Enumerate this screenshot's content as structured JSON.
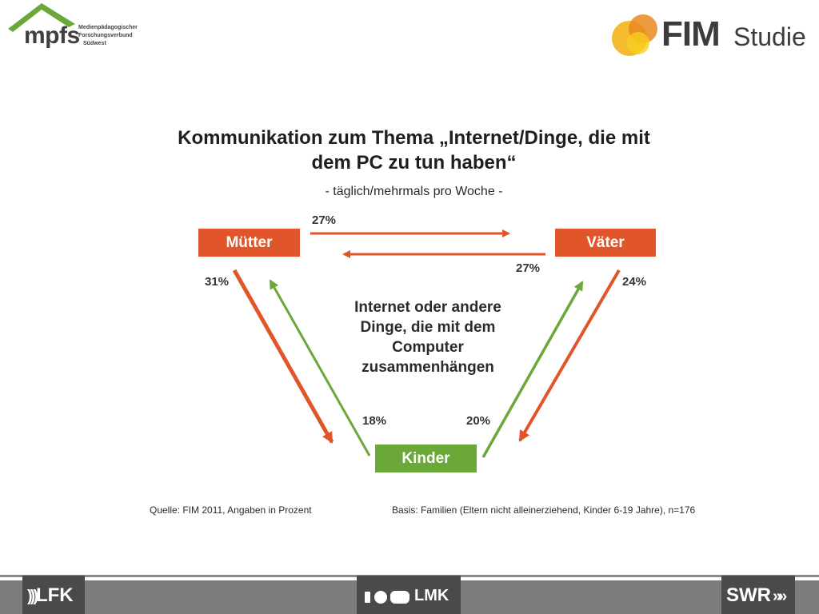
{
  "header": {
    "left_logo": {
      "word": "mpfs",
      "subtitle_lines": [
        "Medienpädagogischer",
        "Forschungsverbund",
        "Südwest"
      ]
    },
    "right_logo": {
      "word": "FIM",
      "suffix": "Studie"
    }
  },
  "title_lines": [
    "Kommunikation zum Thema „Internet/Dinge, die mit",
    "dem PC zu tun haben“"
  ],
  "subtitle": "- täglich/mehrmals pro Woche -",
  "nodes": {
    "mothers": "Mütter",
    "fathers": "Väter",
    "children": "Kinder"
  },
  "center_label_lines": [
    "Internet oder andere",
    "Dinge, die mit dem",
    "Computer",
    "zusammenhängen"
  ],
  "percentages": {
    "mothers_to_fathers": "27%",
    "fathers_to_mothers": "27%",
    "mothers_to_children": "31%",
    "fathers_to_children": "24%",
    "children_to_mothers": "18%",
    "children_to_fathers": "20%"
  },
  "colors": {
    "orange": "#e0562a",
    "green": "#6aa83a"
  },
  "footer": {
    "source": "Quelle: FIM 2011,  Angaben in Prozent",
    "basis": "Basis: Familien (Eltern nicht alleinerziehend, Kinder 6-19 Jahre), n=176"
  },
  "bottom_bar": {
    "left": "LFK",
    "center": "LMK",
    "right": "SWR"
  }
}
